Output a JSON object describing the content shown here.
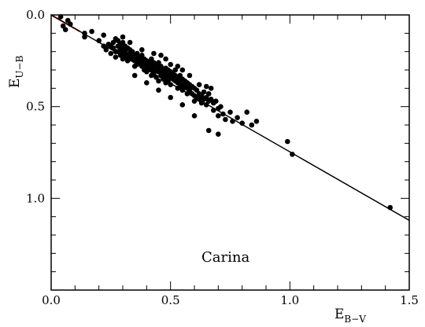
{
  "chart_data": {
    "type": "scatter",
    "xlabel_main": "E",
    "xlabel_sub": "B−V",
    "ylabel_main": "E",
    "ylabel_sub": "U−B",
    "xlim": [
      0.0,
      1.5
    ],
    "ylim": [
      0.0,
      1.5
    ],
    "y_inverted": true,
    "x_ticks": [
      "0.0",
      "0.5",
      "1.0",
      "1.5"
    ],
    "y_ticks": [
      "0.0",
      "0.5",
      "1.0"
    ],
    "annotation": "Carina",
    "grid": false,
    "lines": [
      {
        "color": "#d42020",
        "from": [
          0.0,
          0.0
        ],
        "to": [
          0.12,
          0.09
        ]
      },
      {
        "color": "#000000",
        "from": [
          0.0,
          0.0
        ],
        "to": [
          1.5,
          1.12
        ]
      }
    ],
    "points": [
      [
        0.04,
        0.01
      ],
      [
        0.05,
        0.06
      ],
      [
        0.06,
        0.08
      ],
      [
        0.08,
        0.05
      ],
      [
        0.07,
        0.03
      ],
      [
        0.14,
        0.1
      ],
      [
        0.14,
        0.12
      ],
      [
        0.17,
        0.09
      ],
      [
        0.2,
        0.14
      ],
      [
        0.22,
        0.17
      ],
      [
        0.22,
        0.11
      ],
      [
        0.23,
        0.19
      ],
      [
        0.24,
        0.16
      ],
      [
        0.25,
        0.17
      ],
      [
        0.25,
        0.21
      ],
      [
        0.26,
        0.15
      ],
      [
        0.26,
        0.18
      ],
      [
        0.27,
        0.2
      ],
      [
        0.27,
        0.23
      ],
      [
        0.28,
        0.14
      ],
      [
        0.28,
        0.17
      ],
      [
        0.28,
        0.2
      ],
      [
        0.29,
        0.16
      ],
      [
        0.29,
        0.19
      ],
      [
        0.29,
        0.22
      ],
      [
        0.3,
        0.15
      ],
      [
        0.3,
        0.18
      ],
      [
        0.3,
        0.21
      ],
      [
        0.3,
        0.24
      ],
      [
        0.31,
        0.17
      ],
      [
        0.31,
        0.2
      ],
      [
        0.31,
        0.23
      ],
      [
        0.32,
        0.18
      ],
      [
        0.32,
        0.22
      ],
      [
        0.32,
        0.25
      ],
      [
        0.33,
        0.19
      ],
      [
        0.33,
        0.21
      ],
      [
        0.33,
        0.24
      ],
      [
        0.34,
        0.2
      ],
      [
        0.34,
        0.23
      ],
      [
        0.35,
        0.22
      ],
      [
        0.35,
        0.25
      ],
      [
        0.35,
        0.28
      ],
      [
        0.36,
        0.21
      ],
      [
        0.36,
        0.24
      ],
      [
        0.36,
        0.27
      ],
      [
        0.37,
        0.23
      ],
      [
        0.37,
        0.26
      ],
      [
        0.38,
        0.22
      ],
      [
        0.38,
        0.25
      ],
      [
        0.38,
        0.28
      ],
      [
        0.39,
        0.24
      ],
      [
        0.39,
        0.27
      ],
      [
        0.39,
        0.3
      ],
      [
        0.4,
        0.25
      ],
      [
        0.4,
        0.28
      ],
      [
        0.4,
        0.31
      ],
      [
        0.41,
        0.26
      ],
      [
        0.41,
        0.29
      ],
      [
        0.42,
        0.24
      ],
      [
        0.42,
        0.27
      ],
      [
        0.42,
        0.3
      ],
      [
        0.42,
        0.33
      ],
      [
        0.43,
        0.26
      ],
      [
        0.43,
        0.29
      ],
      [
        0.43,
        0.32
      ],
      [
        0.44,
        0.27
      ],
      [
        0.44,
        0.3
      ],
      [
        0.44,
        0.34
      ],
      [
        0.45,
        0.26
      ],
      [
        0.45,
        0.29
      ],
      [
        0.45,
        0.31
      ],
      [
        0.45,
        0.36
      ],
      [
        0.46,
        0.28
      ],
      [
        0.46,
        0.31
      ],
      [
        0.46,
        0.33
      ],
      [
        0.47,
        0.3
      ],
      [
        0.47,
        0.32
      ],
      [
        0.47,
        0.35
      ],
      [
        0.48,
        0.29
      ],
      [
        0.48,
        0.31
      ],
      [
        0.48,
        0.34
      ],
      [
        0.48,
        0.37
      ],
      [
        0.49,
        0.3
      ],
      [
        0.49,
        0.33
      ],
      [
        0.49,
        0.36
      ],
      [
        0.5,
        0.31
      ],
      [
        0.5,
        0.34
      ],
      [
        0.5,
        0.38
      ],
      [
        0.51,
        0.32
      ],
      [
        0.51,
        0.35
      ],
      [
        0.52,
        0.3
      ],
      [
        0.52,
        0.33
      ],
      [
        0.52,
        0.36
      ],
      [
        0.53,
        0.34
      ],
      [
        0.53,
        0.37
      ],
      [
        0.53,
        0.4
      ],
      [
        0.54,
        0.33
      ],
      [
        0.54,
        0.36
      ],
      [
        0.54,
        0.39
      ],
      [
        0.55,
        0.35
      ],
      [
        0.55,
        0.38
      ],
      [
        0.55,
        0.41
      ],
      [
        0.56,
        0.36
      ],
      [
        0.56,
        0.39
      ],
      [
        0.57,
        0.37
      ],
      [
        0.57,
        0.4
      ],
      [
        0.57,
        0.43
      ],
      [
        0.58,
        0.38
      ],
      [
        0.58,
        0.41
      ],
      [
        0.59,
        0.39
      ],
      [
        0.59,
        0.43
      ],
      [
        0.6,
        0.4
      ],
      [
        0.6,
        0.44
      ],
      [
        0.6,
        0.47
      ],
      [
        0.61,
        0.41
      ],
      [
        0.61,
        0.45
      ],
      [
        0.62,
        0.43
      ],
      [
        0.62,
        0.46
      ],
      [
        0.63,
        0.44
      ],
      [
        0.63,
        0.48
      ],
      [
        0.64,
        0.42
      ],
      [
        0.64,
        0.46
      ],
      [
        0.65,
        0.45
      ],
      [
        0.65,
        0.49
      ],
      [
        0.66,
        0.47
      ],
      [
        0.66,
        0.43
      ],
      [
        0.67,
        0.46
      ],
      [
        0.67,
        0.4
      ],
      [
        0.68,
        0.48
      ],
      [
        0.68,
        0.52
      ],
      [
        0.69,
        0.47
      ],
      [
        0.7,
        0.51
      ],
      [
        0.7,
        0.55
      ],
      [
        0.71,
        0.5
      ],
      [
        0.72,
        0.54
      ],
      [
        0.73,
        0.57
      ],
      [
        0.75,
        0.53
      ],
      [
        0.76,
        0.58
      ],
      [
        0.78,
        0.56
      ],
      [
        0.8,
        0.59
      ],
      [
        0.82,
        0.53
      ],
      [
        0.84,
        0.6
      ],
      [
        0.86,
        0.58
      ],
      [
        0.66,
        0.63
      ],
      [
        0.7,
        0.65
      ],
      [
        0.6,
        0.55
      ],
      [
        0.55,
        0.49
      ],
      [
        0.5,
        0.45
      ],
      [
        0.45,
        0.41
      ],
      [
        0.4,
        0.37
      ],
      [
        0.35,
        0.33
      ],
      [
        0.43,
        0.21
      ],
      [
        0.38,
        0.19
      ],
      [
        0.33,
        0.15
      ],
      [
        0.3,
        0.12
      ],
      [
        0.27,
        0.13
      ],
      [
        0.5,
        0.27
      ],
      [
        0.55,
        0.3
      ],
      [
        0.48,
        0.24
      ],
      [
        0.46,
        0.22
      ],
      [
        0.53,
        0.28
      ],
      [
        0.58,
        0.33
      ],
      [
        0.62,
        0.38
      ],
      [
        0.65,
        0.39
      ],
      [
        0.99,
        0.69
      ],
      [
        1.01,
        0.76
      ],
      [
        1.42,
        1.05
      ]
    ]
  }
}
